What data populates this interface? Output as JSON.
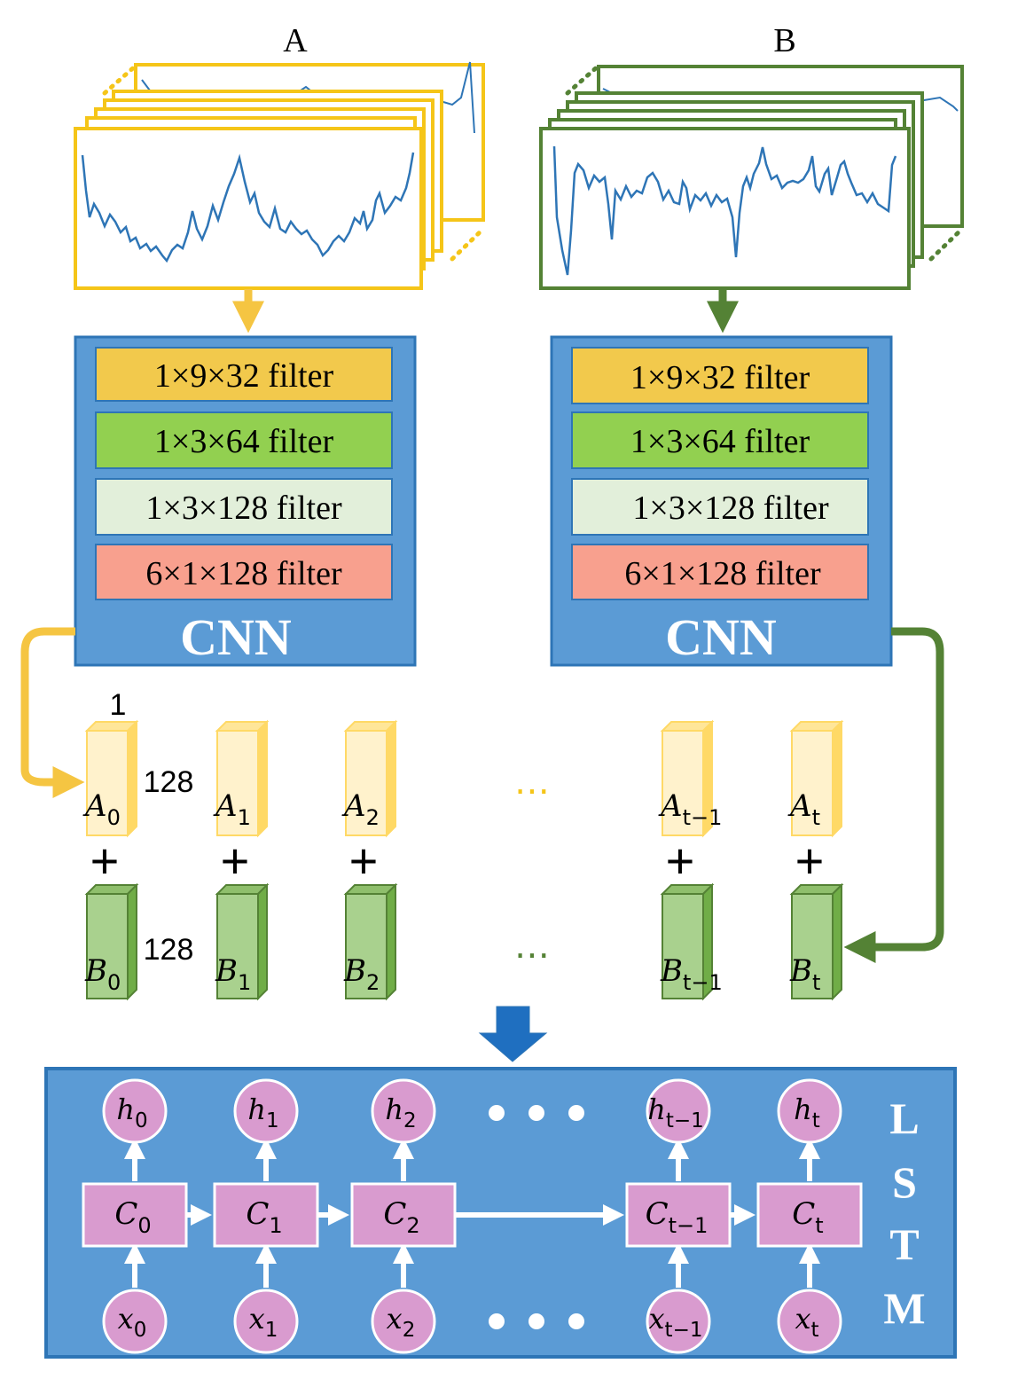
{
  "column_labels": {
    "left": "A",
    "right": "B"
  },
  "filters_left": [
    "1×9×32 filter",
    "1×3×64 filter",
    "1×3×128 filter",
    "6×1×128 filter"
  ],
  "filters_right": [
    "1×9×32 filter",
    "1×3×64 filter",
    "1×3×128 filter",
    "6×1×128 filter"
  ],
  "cnn_label": "CNN",
  "dims": {
    "width": "1",
    "height_a": "128",
    "height_b": "128"
  },
  "vectors_a": [
    {
      "base": "A",
      "sub": "0"
    },
    {
      "base": "A",
      "sub": "1"
    },
    {
      "base": "A",
      "sub": "2"
    },
    {
      "base": "A",
      "sub": "t−1"
    },
    {
      "base": "A",
      "sub": "t"
    }
  ],
  "vectors_b": [
    {
      "base": "B",
      "sub": "0"
    },
    {
      "base": "B",
      "sub": "1"
    },
    {
      "base": "B",
      "sub": "2"
    },
    {
      "base": "B",
      "sub": "t−1"
    },
    {
      "base": "B",
      "sub": "t"
    }
  ],
  "plus_sign": "+",
  "ellipsis": "⋯",
  "lstm": {
    "label_letters": [
      "L",
      "S",
      "T",
      "M"
    ],
    "hidden": [
      {
        "base": "h",
        "sub": "0"
      },
      {
        "base": "h",
        "sub": "1"
      },
      {
        "base": "h",
        "sub": "2"
      },
      {
        "base": "h",
        "sub": "t−1"
      },
      {
        "base": "h",
        "sub": "t"
      }
    ],
    "cells": [
      {
        "base": "C",
        "sub": "0"
      },
      {
        "base": "C",
        "sub": "1"
      },
      {
        "base": "C",
        "sub": "2"
      },
      {
        "base": "C",
        "sub": "t−1"
      },
      {
        "base": "C",
        "sub": "t"
      }
    ],
    "inputs": [
      {
        "base": "x",
        "sub": "0"
      },
      {
        "base": "x",
        "sub": "1"
      },
      {
        "base": "x",
        "sub": "2"
      },
      {
        "base": "x",
        "sub": "t−1"
      },
      {
        "base": "x",
        "sub": "t"
      }
    ]
  },
  "colors": {
    "yellow": "#f5c518",
    "green": "#548235",
    "blue_panel": "#5b9bd5",
    "filter1": "#f2c94c",
    "filter2": "#92d050",
    "filter3": "#e2efda",
    "filter4": "#f8a08e",
    "pink": "#d99bcf",
    "signal": "#2e75b6"
  }
}
